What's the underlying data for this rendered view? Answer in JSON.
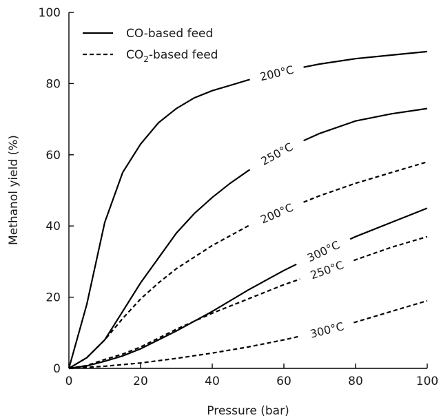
{
  "chart_data": {
    "type": "line",
    "xlabel": "Pressure (bar)",
    "ylabel": "Methanol yield (%)",
    "xlim": [
      0,
      100
    ],
    "ylim": [
      0,
      100
    ],
    "xticks": [
      0,
      20,
      40,
      60,
      80,
      100
    ],
    "yticks": [
      0,
      20,
      40,
      60,
      80,
      100
    ],
    "grid": false,
    "legend_position": "top-left",
    "legend": [
      {
        "label": "CO-based feed",
        "style": "solid"
      },
      {
        "label_main": "CO",
        "label_sub": "2",
        "label_rest": "-based feed",
        "style": "dashed"
      }
    ],
    "series": [
      {
        "feed": "CO",
        "label": "200°C",
        "style": "solid",
        "x": [
          0,
          5,
          10,
          15,
          20,
          25,
          30,
          35,
          40,
          45,
          50,
          60,
          70,
          80,
          90,
          100
        ],
        "y": [
          0,
          18,
          41,
          55,
          63,
          69,
          73,
          76,
          78,
          79.5,
          81,
          83.5,
          85.5,
          87,
          88,
          89
        ]
      },
      {
        "feed": "CO",
        "label": "250°C",
        "style": "solid",
        "x": [
          0,
          5,
          10,
          15,
          20,
          25,
          30,
          35,
          40,
          45,
          50,
          60,
          70,
          80,
          90,
          100
        ],
        "y": [
          0,
          3,
          8,
          16,
          24,
          31,
          38,
          43.5,
          48,
          52,
          55.5,
          61.5,
          66,
          69.5,
          71.5,
          73
        ]
      },
      {
        "feed": "CO",
        "label": "300°C",
        "style": "solid",
        "x": [
          0,
          5,
          10,
          15,
          20,
          25,
          30,
          40,
          50,
          60,
          70,
          80,
          90,
          100
        ],
        "y": [
          0,
          0.7,
          2,
          3.5,
          5.5,
          8,
          10.5,
          16,
          22,
          27.5,
          32.5,
          37,
          41,
          45
        ]
      },
      {
        "feed": "CO2",
        "label": "200°C",
        "style": "dashed",
        "x": [
          0,
          5,
          10,
          15,
          20,
          25,
          30,
          40,
          50,
          60,
          70,
          80,
          90,
          100
        ],
        "y": [
          0,
          3,
          8,
          14,
          19.5,
          24,
          28,
          34.5,
          40,
          44.5,
          48.5,
          52,
          55,
          58
        ]
      },
      {
        "feed": "CO2",
        "label": "250°C",
        "style": "dashed",
        "x": [
          0,
          5,
          10,
          15,
          20,
          25,
          30,
          40,
          50,
          60,
          70,
          80,
          90,
          100
        ],
        "y": [
          0,
          0.8,
          2.5,
          4,
          6,
          8.5,
          11,
          15.5,
          19.5,
          23.5,
          27,
          30.5,
          34,
          37
        ]
      },
      {
        "feed": "CO2",
        "label": "300°C",
        "style": "dashed",
        "x": [
          0,
          10,
          20,
          30,
          40,
          50,
          60,
          70,
          80,
          90,
          100
        ],
        "y": [
          0,
          0.6,
          1.5,
          2.8,
          4.3,
          6,
          8,
          10.3,
          13,
          16,
          19
        ]
      }
    ]
  }
}
